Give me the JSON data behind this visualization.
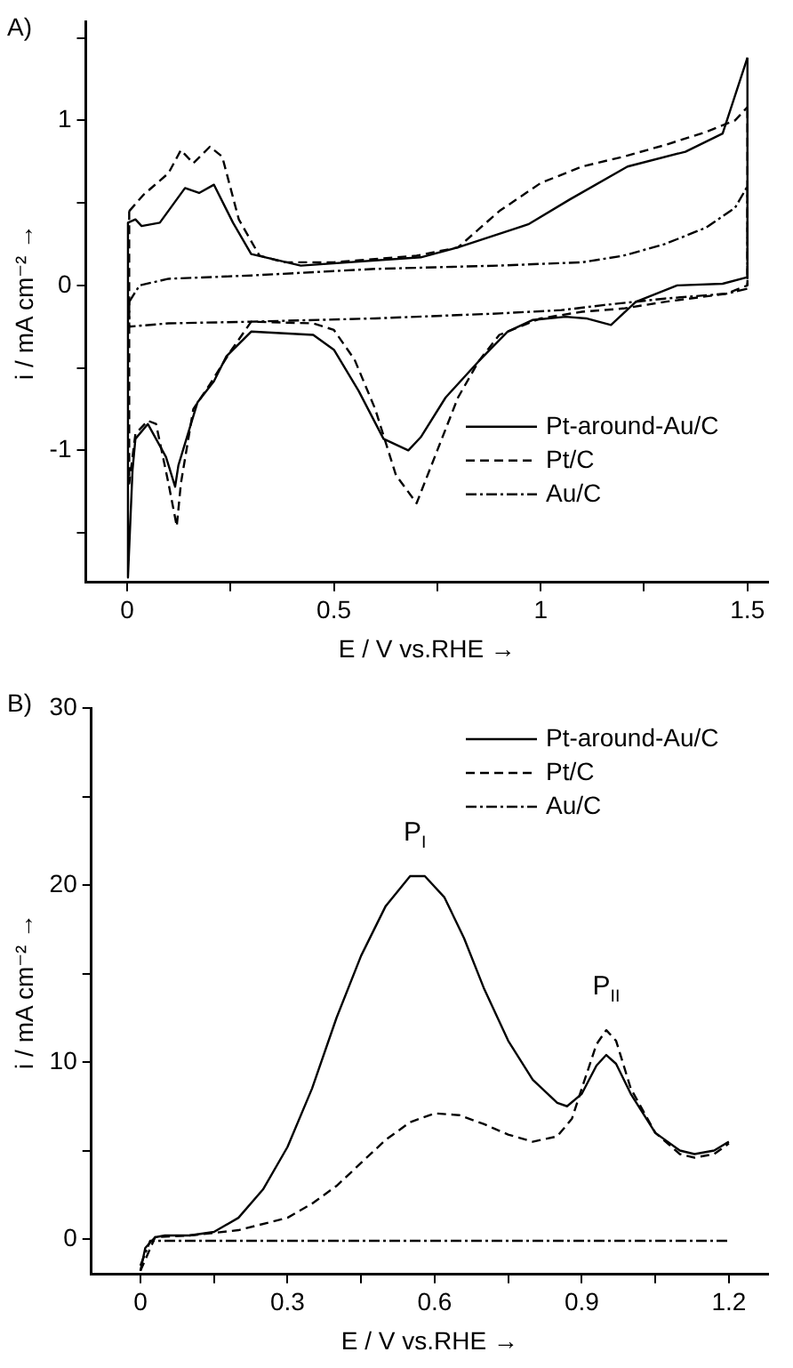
{
  "chart_data": [
    {
      "type": "line",
      "xlabel": "E / V vs.RHE →",
      "ylabel": "i / mA cm⁻² →",
      "annotations": [
        "A)"
      ],
      "legend": "bottom right",
      "marker": "none",
      "grid": false,
      "xlim": [
        -0.1,
        1.55
      ],
      "xticks": [
        0,
        {
          "value": 0.25,
          "label": null
        },
        0.5,
        {
          "value": 0.75,
          "label": null
        },
        1.0,
        {
          "value": 1.25,
          "label": null
        },
        1.5
      ],
      "ylim": [
        -1.8,
        1.6
      ],
      "yticks": [
        {
          "value": -1.5,
          "label": null
        },
        -1,
        {
          "value": -0.5,
          "label": null
        },
        0,
        {
          "value": 0.5,
          "label": null
        },
        1,
        {
          "value": 1.5,
          "label": null
        }
      ],
      "series": [
        {
          "name": "Pt-around-Au/C",
          "color": "#000000",
          "line_style": "solid",
          "x": [
            0.002,
            0.02,
            0.035,
            0.079,
            0.14,
            0.174,
            0.21,
            0.256,
            0.3,
            0.42,
            0.71,
            0.8,
            0.97,
            1.07,
            1.21,
            1.35,
            1.44,
            1.5
          ],
          "values": [
            0.38,
            0.4,
            0.36,
            0.38,
            0.59,
            0.56,
            0.61,
            0.38,
            0.19,
            0.12,
            0.17,
            0.23,
            0.37,
            0.52,
            0.72,
            0.81,
            0.92,
            1.38
          ]
        },
        {
          "color": "#000000",
          "line_style": "solid",
          "x": [
            0.002,
            0.002,
            0.013,
            0.02,
            0.05,
            0.094,
            0.116,
            0.124,
            0.17,
            0.21,
            0.24,
            0.3,
            0.45,
            0.5,
            0.56,
            0.62,
            0.68,
            0.71,
            0.77,
            0.85,
            0.92,
            0.98,
            1.06,
            1.11,
            1.17,
            1.23,
            1.33,
            1.44,
            1.5,
            1.5
          ],
          "values": [
            0.38,
            -1.77,
            -1.12,
            -0.93,
            -0.84,
            -1.04,
            -1.22,
            -1.09,
            -0.71,
            -0.58,
            -0.43,
            -0.28,
            -0.3,
            -0.39,
            -0.64,
            -0.93,
            -1.0,
            -0.92,
            -0.68,
            -0.46,
            -0.28,
            -0.21,
            -0.19,
            -0.2,
            -0.24,
            -0.1,
            0.0,
            0.01,
            0.05,
            1.38
          ]
        },
        {
          "name": "Pt/C",
          "color": "#000000",
          "line_style": "dashed",
          "x": [
            0.005,
            0.04,
            0.1,
            0.13,
            0.16,
            0.2,
            0.23,
            0.27,
            0.32,
            0.38,
            0.5,
            0.7,
            0.8,
            0.9,
            1.0,
            1.1,
            1.2,
            1.3,
            1.4,
            1.47,
            1.5
          ],
          "values": [
            0.45,
            0.55,
            0.68,
            0.82,
            0.74,
            0.84,
            0.78,
            0.4,
            0.18,
            0.14,
            0.14,
            0.18,
            0.23,
            0.45,
            0.62,
            0.72,
            0.78,
            0.85,
            0.93,
            1.0,
            1.08
          ]
        },
        {
          "color": "#000000",
          "line_style": "dashed",
          "x": [
            0.005,
            0.005,
            0.02,
            0.05,
            0.07,
            0.1,
            0.12,
            0.13,
            0.16,
            0.2,
            0.25,
            0.3,
            0.45,
            0.5,
            0.55,
            0.6,
            0.65,
            0.7,
            0.75,
            0.8,
            0.85,
            0.9,
            1.0,
            1.1,
            1.2,
            1.3,
            1.45,
            1.5,
            1.5
          ],
          "values": [
            0.45,
            -1.2,
            -0.9,
            -0.82,
            -0.84,
            -1.2,
            -1.46,
            -1.2,
            -0.75,
            -0.6,
            -0.4,
            -0.22,
            -0.23,
            -0.27,
            -0.45,
            -0.75,
            -1.15,
            -1.32,
            -1.0,
            -0.68,
            -0.46,
            -0.3,
            -0.2,
            -0.16,
            -0.14,
            -0.1,
            -0.05,
            0.0,
            1.08
          ]
        },
        {
          "name": "Au/C",
          "color": "#000000",
          "line_style": "dashdot",
          "x": [
            0.005,
            0.03,
            0.1,
            0.3,
            0.6,
            0.9,
            1.1,
            1.2,
            1.3,
            1.4,
            1.47,
            1.5
          ],
          "values": [
            -0.1,
            0.0,
            0.04,
            0.06,
            0.1,
            0.12,
            0.14,
            0.18,
            0.25,
            0.35,
            0.47,
            0.6
          ]
        },
        {
          "color": "#000000",
          "line_style": "dashdot",
          "x": [
            0.005,
            0.005,
            0.1,
            0.3,
            0.6,
            0.9,
            1.05,
            1.15,
            1.3,
            1.45,
            1.5,
            1.5
          ],
          "values": [
            -0.1,
            -0.25,
            -0.23,
            -0.22,
            -0.2,
            -0.17,
            -0.15,
            -0.12,
            -0.08,
            -0.05,
            -0.02,
            0.6
          ]
        }
      ]
    },
    {
      "type": "line",
      "xlabel": "E / V vs.RHE →",
      "ylabel": "i / mA cm⁻² →",
      "annotations": [
        "B)",
        {
          "text": "P$_{I}$",
          "x": 0.56,
          "y": 20.5
        },
        {
          "text": "P$_{II}$",
          "x": 0.95,
          "y": 11.8
        }
      ],
      "legend": "top right",
      "marker": "none",
      "grid": false,
      "xlim": [
        -0.1,
        1.28
      ],
      "xticks": [
        0.0,
        {
          "value": 0.15,
          "label": null
        },
        0.3,
        {
          "value": 0.45,
          "label": null
        },
        0.6,
        {
          "value": 0.75,
          "label": null
        },
        0.9,
        {
          "value": 1.05,
          "label": null
        },
        1.2
      ],
      "ylim": [
        -2,
        30
      ],
      "yticks": [
        0,
        {
          "value": 5,
          "label": null
        },
        10,
        {
          "value": 15,
          "label": null
        },
        20,
        {
          "value": 25,
          "label": null
        },
        30
      ],
      "series": [
        {
          "name": "Pt-around-Au/C",
          "color": "#000000",
          "line_style": "solid",
          "x": [
            0.0,
            0.01,
            0.03,
            0.05,
            0.1,
            0.15,
            0.2,
            0.25,
            0.3,
            0.35,
            0.4,
            0.45,
            0.5,
            0.55,
            0.58,
            0.62,
            0.66,
            0.7,
            0.75,
            0.8,
            0.85,
            0.87,
            0.9,
            0.93,
            0.95,
            0.97,
            1.0,
            1.05,
            1.1,
            1.13,
            1.17,
            1.2
          ],
          "values": [
            -1.8,
            -0.5,
            0.1,
            0.2,
            0.2,
            0.4,
            1.2,
            2.8,
            5.2,
            8.5,
            12.5,
            16.0,
            18.8,
            20.5,
            20.5,
            19.3,
            17.0,
            14.2,
            11.2,
            9.0,
            7.7,
            7.5,
            8.2,
            9.8,
            10.4,
            9.9,
            8.2,
            6.0,
            5.0,
            4.8,
            5.0,
            5.5
          ]
        },
        {
          "name": "Pt/C",
          "color": "#000000",
          "line_style": "dashed",
          "x": [
            0.0,
            0.03,
            0.1,
            0.2,
            0.3,
            0.35,
            0.4,
            0.45,
            0.5,
            0.55,
            0.6,
            0.65,
            0.7,
            0.75,
            0.8,
            0.85,
            0.88,
            0.9,
            0.93,
            0.95,
            0.97,
            1.0,
            1.05,
            1.1,
            1.13,
            1.17,
            1.2
          ],
          "values": [
            -1.8,
            0.1,
            0.2,
            0.5,
            1.2,
            2.0,
            3.0,
            4.3,
            5.6,
            6.6,
            7.1,
            7.0,
            6.5,
            5.9,
            5.5,
            5.8,
            6.8,
            8.5,
            11.0,
            11.8,
            11.2,
            8.5,
            6.0,
            4.8,
            4.6,
            4.8,
            5.4
          ]
        },
        {
          "name": "Au/C",
          "color": "#000000",
          "line_style": "dashdot",
          "x": [
            0.0,
            0.02,
            0.05,
            1.2
          ],
          "values": [
            -1.5,
            -0.1,
            -0.1,
            -0.1
          ]
        }
      ]
    }
  ]
}
